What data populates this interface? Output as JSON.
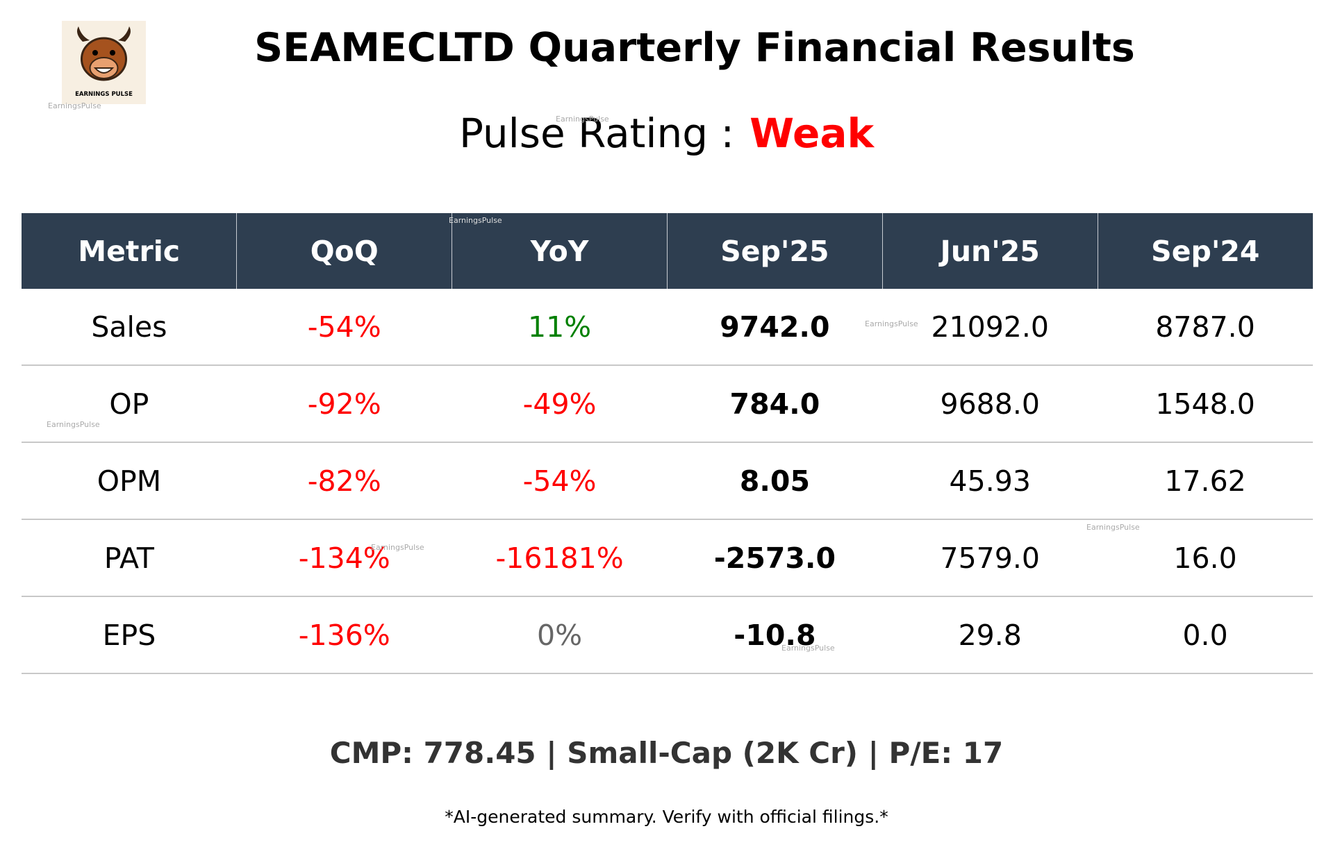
{
  "header": {
    "title": "SEAMECLTD Quarterly Financial Results",
    "rating_label": "Pulse Rating :",
    "rating_value": "Weak",
    "logo_text": "EARNINGS PULSE"
  },
  "watermark": "EarningsPulse",
  "table": {
    "columns": [
      "Metric",
      "QoQ",
      "YoY",
      "Sep'25",
      "Jun'25",
      "Sep'24"
    ],
    "rows": [
      [
        "Sales",
        "-54%",
        "11%",
        "9742.0",
        "21092.0",
        "8787.0"
      ],
      [
        "OP",
        "-92%",
        "-49%",
        "784.0",
        "9688.0",
        "1548.0"
      ],
      [
        "OPM",
        "-82%",
        "-54%",
        "8.05",
        "45.93",
        "17.62"
      ],
      [
        "PAT",
        "-134%",
        "-16181%",
        "-2573.0",
        "7579.0",
        "16.0"
      ],
      [
        "EPS",
        "-136%",
        "0%",
        "-10.8",
        "29.8",
        "0.0"
      ]
    ]
  },
  "footer": {
    "summary": "CMP: 778.45 | Small-Cap (2K Cr) | P/E: 17",
    "disclaimer": "*AI-generated summary. Verify with official filings.*"
  }
}
